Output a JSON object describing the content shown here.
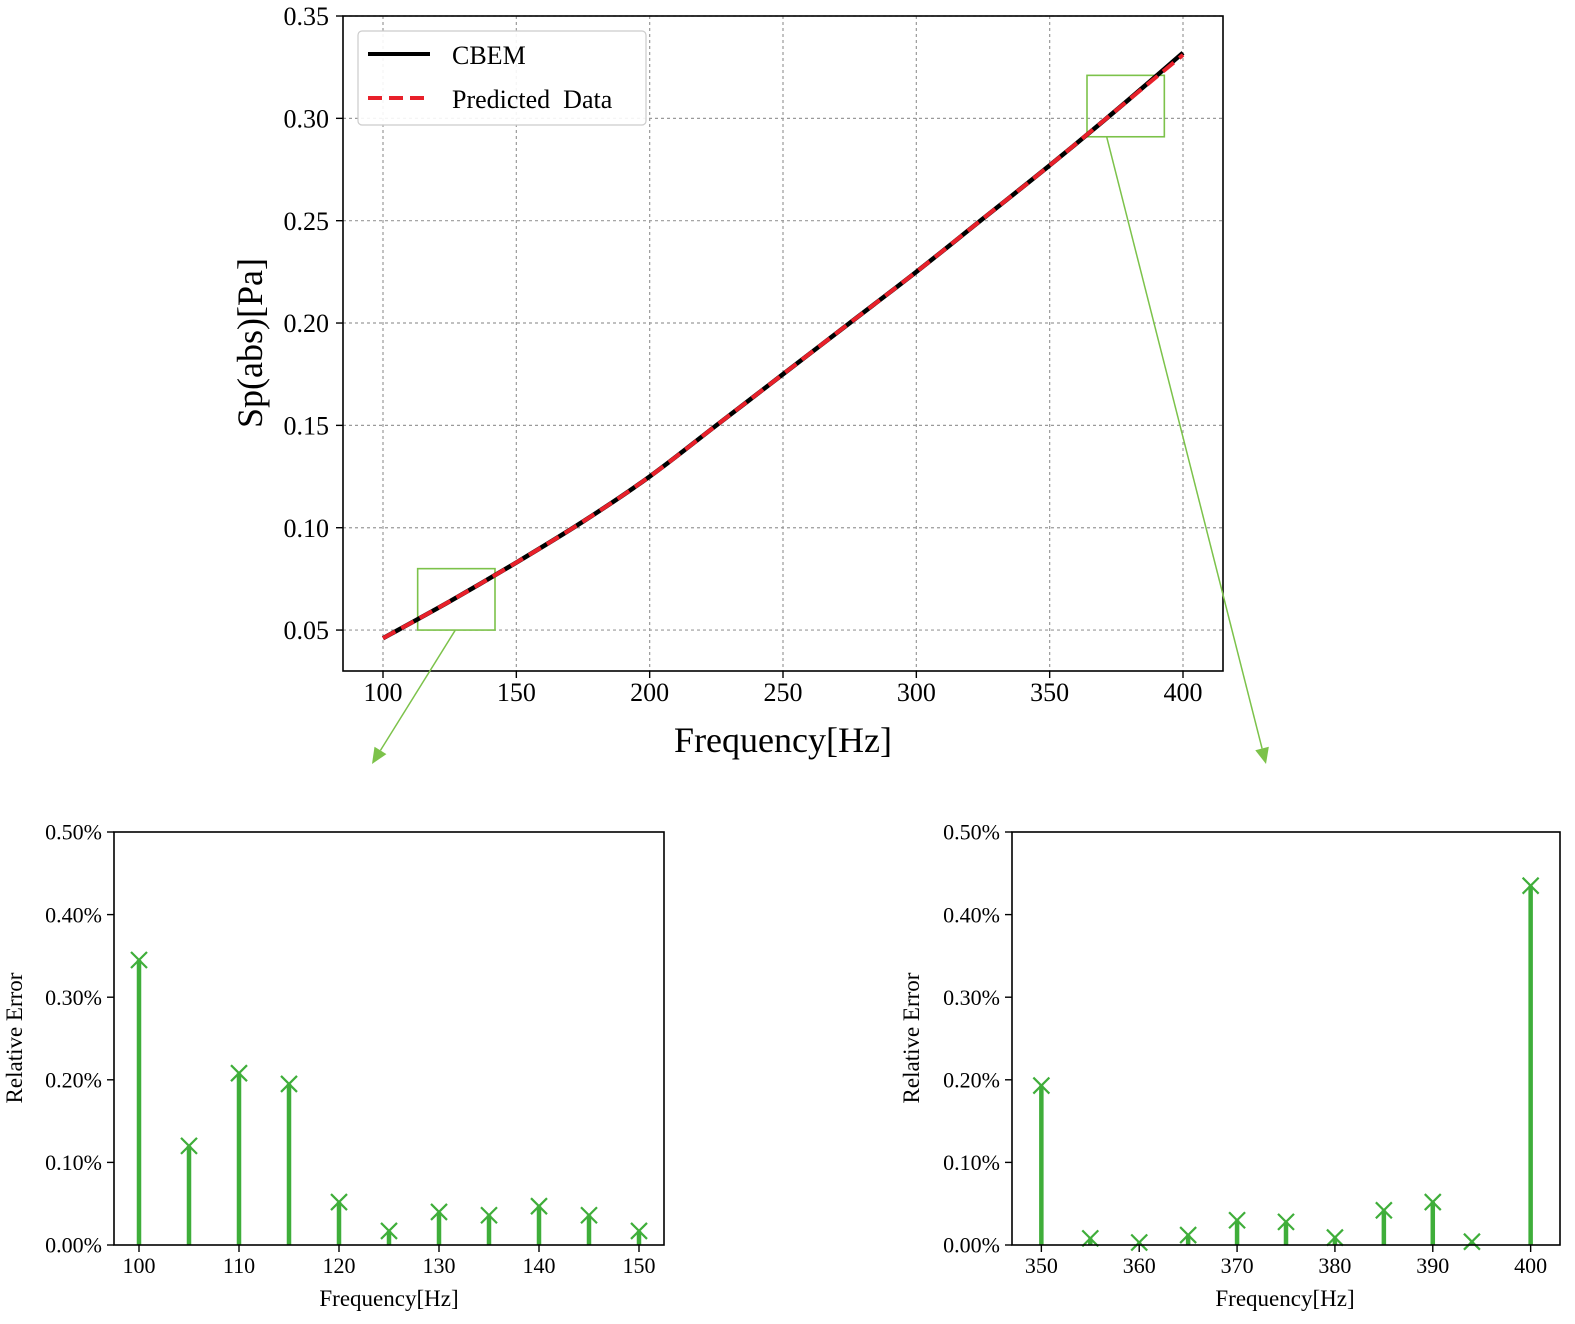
{
  "colors": {
    "cbem": "#000000",
    "predicted": "#e8202a",
    "stem": "#3fae3a",
    "zoom_box": "#7cc24a"
  },
  "chart_data": [
    {
      "type": "line",
      "xlabel": "Frequency[Hz]",
      "ylabel": "Sp(abs)[Pa]",
      "xlim": [
        85,
        415
      ],
      "ylim": [
        0.03,
        0.35
      ],
      "xticks": [
        100,
        150,
        200,
        250,
        300,
        350,
        400
      ],
      "yticks": [
        0.05,
        0.1,
        0.15,
        0.2,
        0.25,
        0.3,
        0.35
      ],
      "xtick_labels": [
        "100",
        "150",
        "200",
        "250",
        "300",
        "350",
        "400"
      ],
      "ytick_labels": [
        "0.05",
        "0.10",
        "0.15",
        "0.20",
        "0.25",
        "0.30",
        "0.35"
      ],
      "grid": true,
      "legend_position": "top-left",
      "x": [
        100,
        125,
        150,
        175,
        200,
        225,
        250,
        275,
        300,
        325,
        350,
        375,
        400
      ],
      "series": [
        {
          "name": "CBEM",
          "style": "solid",
          "values": [
            0.046,
            0.064,
            0.083,
            0.103,
            0.125,
            0.15,
            0.175,
            0.2,
            0.225,
            0.251,
            0.277,
            0.304,
            0.332
          ]
        },
        {
          "name": "Predicted  Data",
          "style": "dashed",
          "values": [
            0.046,
            0.064,
            0.083,
            0.103,
            0.125,
            0.15,
            0.175,
            0.2,
            0.225,
            0.251,
            0.277,
            0.304,
            0.331
          ]
        }
      ],
      "zoom_regions": [
        {
          "xlim": [
            113,
            142
          ],
          "ylim": [
            0.05,
            0.08
          ]
        },
        {
          "xlim": [
            364,
            393
          ],
          "ylim": [
            0.291,
            0.321
          ]
        }
      ]
    },
    {
      "type": "stem",
      "xlabel": "Frequency[Hz]",
      "ylabel": "Relative Error",
      "xlim": [
        97.5,
        152.5
      ],
      "ylim": [
        0,
        0.5
      ],
      "xticks": [
        100,
        110,
        120,
        130,
        140,
        150
      ],
      "yticks": [
        0,
        0.1,
        0.2,
        0.3,
        0.4,
        0.5
      ],
      "xtick_labels": [
        "100",
        "110",
        "120",
        "130",
        "140",
        "150"
      ],
      "ytick_labels": [
        "0.00%",
        "0.10%",
        "0.20%",
        "0.30%",
        "0.40%",
        "0.50%"
      ],
      "marker": "x",
      "x": [
        100,
        105,
        110,
        115,
        120,
        125,
        130,
        135,
        140,
        145,
        150
      ],
      "values": [
        0.345,
        0.12,
        0.208,
        0.195,
        0.052,
        0.017,
        0.04,
        0.036,
        0.047,
        0.036,
        0.017
      ]
    },
    {
      "type": "stem",
      "xlabel": "Frequency[Hz]",
      "ylabel": "Relative Error",
      "xlim": [
        347,
        403
      ],
      "ylim": [
        0,
        0.5
      ],
      "xticks": [
        350,
        360,
        370,
        380,
        390,
        400
      ],
      "yticks": [
        0,
        0.1,
        0.2,
        0.3,
        0.4,
        0.5
      ],
      "xtick_labels": [
        "350",
        "360",
        "370",
        "380",
        "390",
        "400"
      ],
      "ytick_labels": [
        "0.00%",
        "0.10%",
        "0.20%",
        "0.30%",
        "0.40%",
        "0.50%"
      ],
      "marker": "x",
      "x": [
        350,
        355,
        360,
        365,
        370,
        375,
        380,
        385,
        390,
        394,
        400
      ],
      "values": [
        0.193,
        0.008,
        0.003,
        0.012,
        0.03,
        0.028,
        0.009,
        0.042,
        0.052,
        0.004,
        0.435
      ]
    }
  ]
}
